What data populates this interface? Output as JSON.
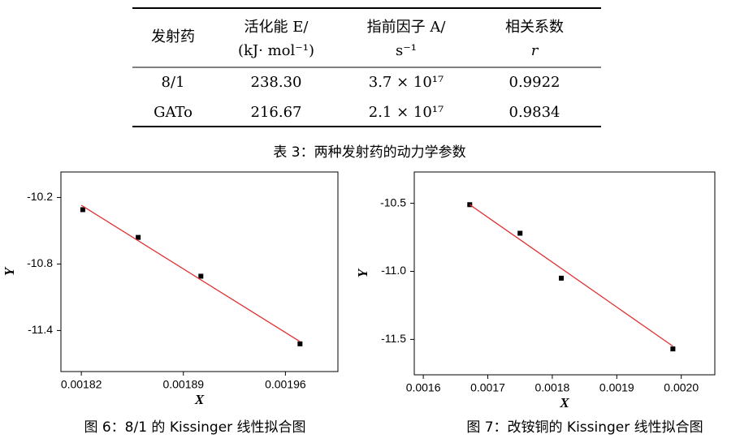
{
  "table": {
    "header": [
      [
        "发射药"
      ],
      [
        "活化能 E/",
        "(kJ· mol⁻¹)"
      ],
      [
        "指前因子 A/",
        "s⁻¹"
      ],
      [
        "相关系数",
        "r"
      ]
    ],
    "rows": [
      [
        "8/1",
        "238.30",
        "3.7 × 10¹⁷",
        "0.9922"
      ],
      [
        "GATo",
        "216.67",
        "2.1 × 10¹⁷",
        "0.9834"
      ]
    ],
    "caption": "表 3：两种发射药的动力学参数"
  },
  "chart_data": [
    {
      "type": "scatter",
      "xlabel": "X",
      "ylabel": "Y",
      "caption": "图 6：8/1 的 Kissinger 线性拟合图",
      "xlim": [
        0.001806,
        0.001996
      ],
      "ylim": [
        -11.77,
        -9.97
      ],
      "xticks": [
        0.00182,
        0.00189,
        0.00196
      ],
      "yticks": [
        -10.2,
        -10.8,
        -11.4
      ],
      "grid": false,
      "series": [
        {
          "mode": "markers",
          "color": "#000000",
          "x": [
            0.001821,
            0.001859,
            0.001902,
            0.00197
          ],
          "values": [
            -10.31,
            -10.56,
            -10.91,
            -11.52
          ]
        },
        {
          "mode": "line",
          "color": "#e03030",
          "x": [
            0.00182,
            0.00197
          ],
          "values": [
            -10.27,
            -11.5
          ]
        }
      ]
    },
    {
      "type": "scatter",
      "xlabel": "X",
      "ylabel": "Y",
      "caption": "图 7：改铵铜的 Kissinger 线性拟合图",
      "xlim": [
        0.001586,
        0.002052
      ],
      "ylim": [
        -11.76,
        -10.27
      ],
      "xticks": [
        0.0016,
        0.0017,
        0.0018,
        0.0019,
        {
          "value": 0.002,
          "label": "0.0020"
        }
      ],
      "yticks": [
        -10.5,
        {
          "value": -11,
          "label": "-11.0"
        },
        -11.5
      ],
      "grid": false,
      "series": [
        {
          "mode": "markers",
          "color": "#000000",
          "x": [
            0.001672,
            0.00175,
            0.001814,
            0.001987
          ],
          "values": [
            -10.51,
            -10.72,
            -11.05,
            -11.57
          ]
        },
        {
          "mode": "line",
          "color": "#e03030",
          "x": [
            0.001672,
            0.001987
          ],
          "values": [
            -10.51,
            -11.55
          ]
        }
      ]
    }
  ]
}
